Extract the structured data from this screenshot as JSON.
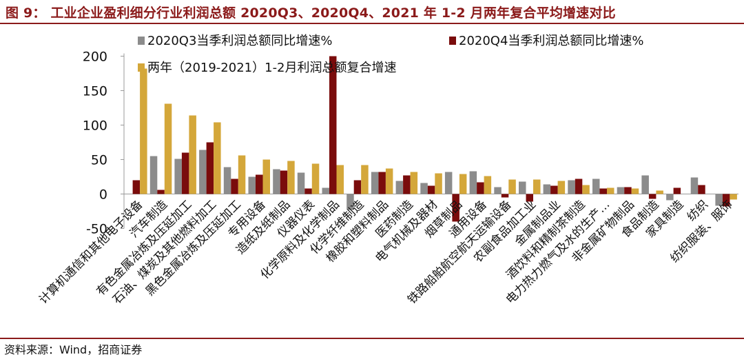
{
  "title": "图 9： 工业企业盈利细分行业利润总额 2020Q3、2020Q4、2021 年 1-2 月两年复合平均增速对比",
  "source": "资料来源：Wind，招商证券",
  "colors": {
    "s1": "#8c8c8c",
    "s2": "#7a0c0c",
    "s3": "#d4a73a",
    "accent": "#8b1a1a"
  },
  "chart_data": {
    "type": "bar",
    "title": "",
    "xlabel": "",
    "ylabel": "",
    "ylim": [
      -50,
      200
    ],
    "yticks": [
      -50,
      0,
      50,
      100,
      150,
      200
    ],
    "legend_position": "top",
    "grid": false,
    "categories": [
      "计算机通信和其他电子设备",
      "汽车制造",
      "有色金属冶炼及压延加工",
      "石油、煤炭及其他燃料加工",
      "黑色金属冶炼及压延加工",
      "专用设备",
      "造纸及纸制品",
      "仪器仪表",
      "化学原料及化学制品",
      "化学纤维制造",
      "橡胶和塑料制品",
      "医药制造",
      "电气机械及器材",
      "烟草制品",
      "通用设备",
      "铁路船舶航空航天运输设备",
      "农副食品加工业",
      "金属制品业",
      "酒饮料和精制茶制造",
      "电力热力燃气及水的生产…",
      "非金属矿物制品",
      "食品制造",
      "家具制造",
      "纺织",
      "纺织服装、服饰"
    ],
    "series": [
      {
        "name": "2020Q3当季利润总额同比增速%",
        "values": [
          0,
          55,
          51,
          64,
          39,
          25,
          36,
          31,
          9,
          -23,
          32,
          19,
          16,
          32,
          33,
          10,
          18,
          14,
          20,
          22,
          10,
          27,
          -9,
          24,
          -17
        ]
      },
      {
        "name": "2020Q4当季利润总额同比增速%",
        "values": [
          20,
          6,
          60,
          75,
          22,
          28,
          34,
          8,
          200,
          20,
          32,
          27,
          12,
          -40,
          17,
          -5,
          -11,
          12,
          22,
          8,
          10,
          -7,
          9,
          13,
          -18
        ]
      },
      {
        "name": "两年（2019-2021）1-2月利润总额复合增速",
        "values": [
          182,
          131,
          114,
          104,
          56,
          50,
          48,
          44,
          42,
          42,
          37,
          32,
          30,
          29,
          26,
          21,
          21,
          19,
          13,
          9,
          8,
          5,
          0,
          0,
          -8
        ]
      }
    ]
  }
}
